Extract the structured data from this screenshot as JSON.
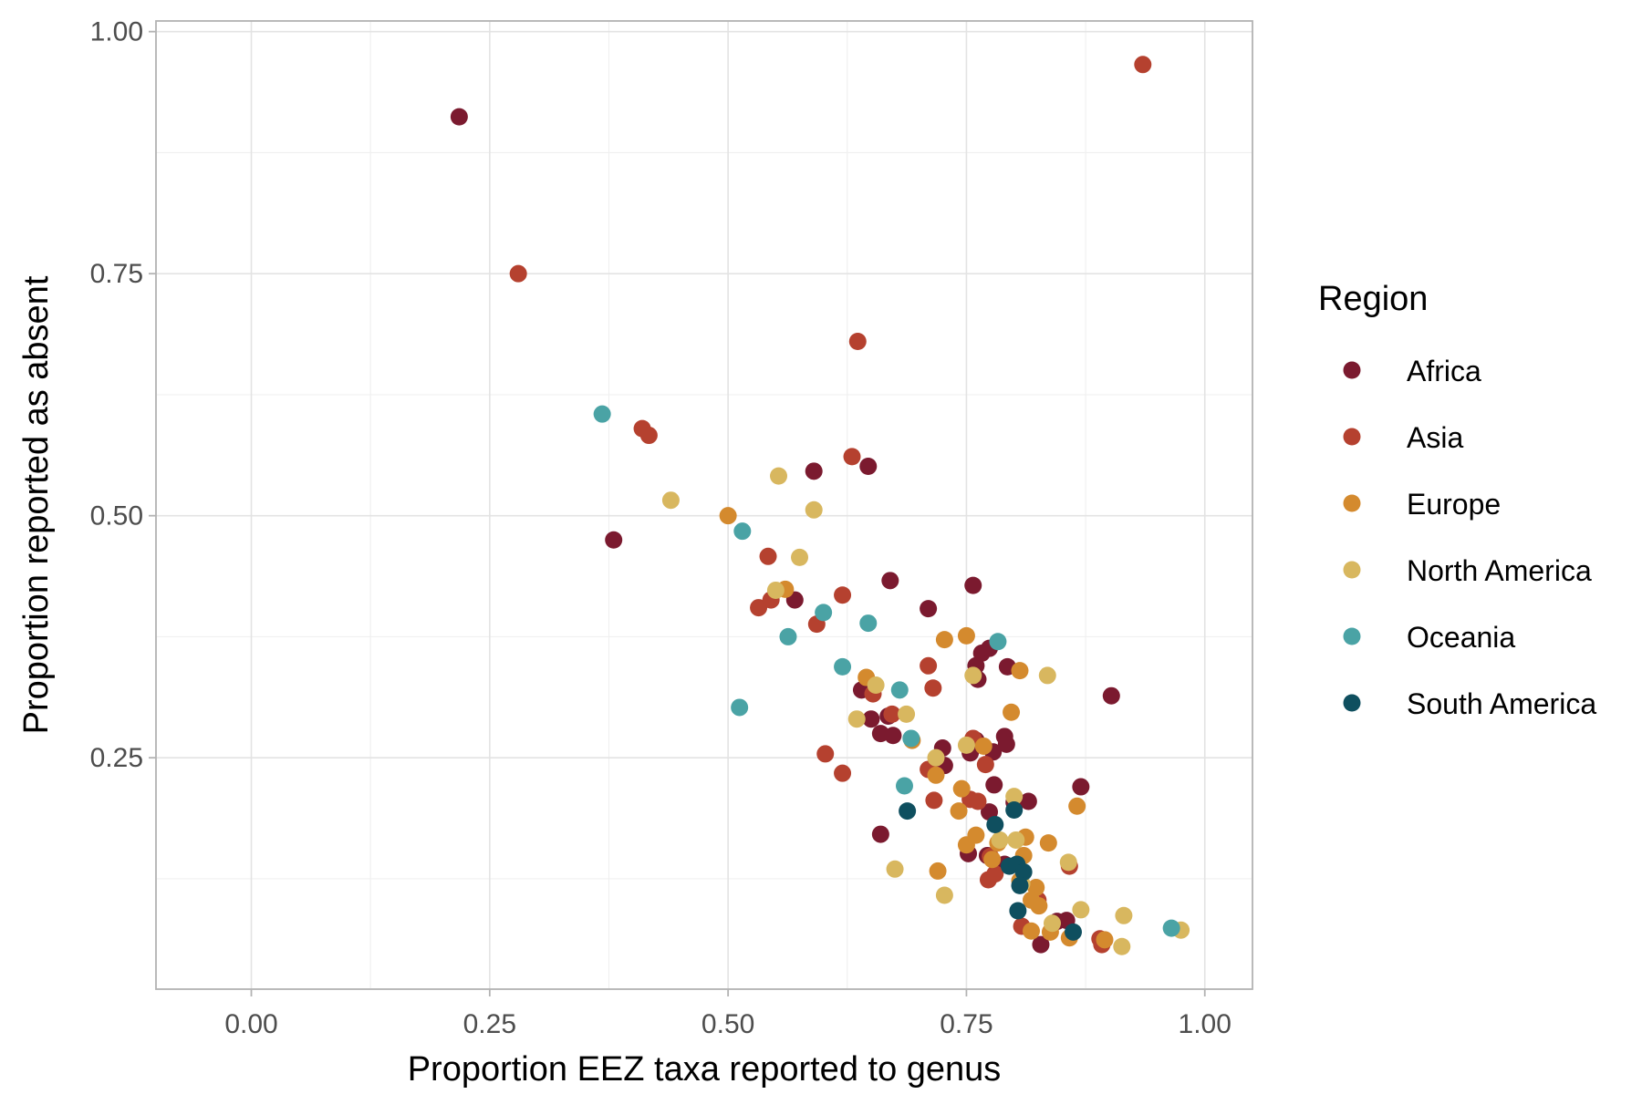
{
  "chart_data": {
    "type": "scatter",
    "title": "",
    "xlabel": "Proportion EEZ taxa reported to genus",
    "ylabel": "Proportion reported as absent",
    "xlim": [
      -0.1,
      1.05
    ],
    "ylim": [
      0.011,
      1.011
    ],
    "x_ticks": [
      0,
      0.25,
      0.5,
      0.75,
      1.0
    ],
    "x_tick_labels": [
      "0.00",
      "0.25",
      "0.50",
      "0.75",
      "1.00"
    ],
    "y_ticks": [
      0.25,
      0.5,
      0.75,
      1.0
    ],
    "y_tick_labels": [
      "0.25",
      "0.50",
      "0.75",
      "1.00"
    ],
    "grid": true,
    "legend": {
      "title": "Region",
      "position": "right"
    },
    "series": [
      {
        "name": "Africa",
        "color": "#7b1a2f",
        "points": [
          [
            0.218,
            0.912
          ],
          [
            0.38,
            0.475
          ],
          [
            0.57,
            0.413
          ],
          [
            0.59,
            0.546
          ],
          [
            0.647,
            0.551
          ],
          [
            0.67,
            0.433
          ],
          [
            0.71,
            0.404
          ],
          [
            0.757,
            0.428
          ],
          [
            0.64,
            0.32
          ],
          [
            0.65,
            0.29
          ],
          [
            0.66,
            0.275
          ],
          [
            0.673,
            0.273
          ],
          [
            0.668,
            0.293
          ],
          [
            0.66,
            0.171
          ],
          [
            0.725,
            0.26
          ],
          [
            0.727,
            0.242
          ],
          [
            0.76,
            0.345
          ],
          [
            0.762,
            0.331
          ],
          [
            0.766,
            0.358
          ],
          [
            0.774,
            0.363
          ],
          [
            0.793,
            0.344
          ],
          [
            0.754,
            0.255
          ],
          [
            0.76,
            0.268
          ],
          [
            0.778,
            0.256
          ],
          [
            0.79,
            0.272
          ],
          [
            0.792,
            0.264
          ],
          [
            0.779,
            0.222
          ],
          [
            0.774,
            0.194
          ],
          [
            0.8,
            0.204
          ],
          [
            0.815,
            0.205
          ],
          [
            0.87,
            0.22
          ],
          [
            0.902,
            0.314
          ],
          [
            0.752,
            0.151
          ],
          [
            0.772,
            0.149
          ],
          [
            0.845,
            0.081
          ],
          [
            0.828,
            0.057
          ],
          [
            0.855,
            0.082
          ],
          [
            0.79,
            0.14
          ]
        ]
      },
      {
        "name": "Asia",
        "color": "#b5412f",
        "points": [
          [
            0.935,
            0.966
          ],
          [
            0.28,
            0.75
          ],
          [
            0.636,
            0.68
          ],
          [
            0.41,
            0.59
          ],
          [
            0.417,
            0.583
          ],
          [
            0.63,
            0.561
          ],
          [
            0.542,
            0.458
          ],
          [
            0.532,
            0.405
          ],
          [
            0.545,
            0.413
          ],
          [
            0.62,
            0.418
          ],
          [
            0.593,
            0.388
          ],
          [
            0.71,
            0.345
          ],
          [
            0.715,
            0.322
          ],
          [
            0.652,
            0.316
          ],
          [
            0.672,
            0.295
          ],
          [
            0.602,
            0.254
          ],
          [
            0.62,
            0.234
          ],
          [
            0.716,
            0.206
          ],
          [
            0.71,
            0.238
          ],
          [
            0.757,
            0.27
          ],
          [
            0.77,
            0.243
          ],
          [
            0.754,
            0.207
          ],
          [
            0.762,
            0.205
          ],
          [
            0.775,
            0.148
          ],
          [
            0.773,
            0.124
          ],
          [
            0.78,
            0.13
          ],
          [
            0.808,
            0.076
          ],
          [
            0.825,
            0.103
          ],
          [
            0.858,
            0.138
          ],
          [
            0.89,
            0.063
          ],
          [
            0.892,
            0.057
          ]
        ]
      },
      {
        "name": "Europe",
        "color": "#d48a2e",
        "points": [
          [
            0.5,
            0.5
          ],
          [
            0.56,
            0.424
          ],
          [
            0.645,
            0.333
          ],
          [
            0.727,
            0.372
          ],
          [
            0.75,
            0.376
          ],
          [
            0.806,
            0.34
          ],
          [
            0.797,
            0.297
          ],
          [
            0.693,
            0.268
          ],
          [
            0.718,
            0.232
          ],
          [
            0.768,
            0.262
          ],
          [
            0.745,
            0.218
          ],
          [
            0.742,
            0.195
          ],
          [
            0.75,
            0.16
          ],
          [
            0.76,
            0.17
          ],
          [
            0.72,
            0.133
          ],
          [
            0.777,
            0.145
          ],
          [
            0.783,
            0.162
          ],
          [
            0.812,
            0.168
          ],
          [
            0.81,
            0.149
          ],
          [
            0.836,
            0.162
          ],
          [
            0.866,
            0.2
          ],
          [
            0.806,
            0.123
          ],
          [
            0.823,
            0.116
          ],
          [
            0.818,
            0.103
          ],
          [
            0.826,
            0.097
          ],
          [
            0.838,
            0.07
          ],
          [
            0.858,
            0.064
          ],
          [
            0.895,
            0.062
          ],
          [
            0.818,
            0.071
          ]
        ]
      },
      {
        "name": "North America",
        "color": "#d8b75f",
        "points": [
          [
            0.44,
            0.516
          ],
          [
            0.553,
            0.541
          ],
          [
            0.59,
            0.506
          ],
          [
            0.575,
            0.457
          ],
          [
            0.55,
            0.423
          ],
          [
            0.635,
            0.29
          ],
          [
            0.655,
            0.325
          ],
          [
            0.687,
            0.295
          ],
          [
            0.757,
            0.335
          ],
          [
            0.835,
            0.335
          ],
          [
            0.718,
            0.25
          ],
          [
            0.75,
            0.263
          ],
          [
            0.8,
            0.21
          ],
          [
            0.802,
            0.165
          ],
          [
            0.675,
            0.135
          ],
          [
            0.727,
            0.108
          ],
          [
            0.808,
            0.12
          ],
          [
            0.857,
            0.142
          ],
          [
            0.87,
            0.093
          ],
          [
            0.915,
            0.087
          ],
          [
            0.913,
            0.055
          ],
          [
            0.975,
            0.072
          ],
          [
            0.84,
            0.079
          ],
          [
            0.785,
            0.165
          ]
        ]
      },
      {
        "name": "Oceania",
        "color": "#4aa3a5",
        "points": [
          [
            0.368,
            0.605
          ],
          [
            0.515,
            0.484
          ],
          [
            0.6,
            0.4
          ],
          [
            0.563,
            0.375
          ],
          [
            0.647,
            0.389
          ],
          [
            0.62,
            0.344
          ],
          [
            0.68,
            0.32
          ],
          [
            0.512,
            0.302
          ],
          [
            0.692,
            0.27
          ],
          [
            0.685,
            0.221
          ],
          [
            0.783,
            0.37
          ],
          [
            0.965,
            0.074
          ]
        ]
      },
      {
        "name": "South America",
        "color": "#0f4f5f",
        "points": [
          [
            0.688,
            0.195
          ],
          [
            0.78,
            0.181
          ],
          [
            0.8,
            0.196
          ],
          [
            0.795,
            0.138
          ],
          [
            0.803,
            0.14
          ],
          [
            0.81,
            0.132
          ],
          [
            0.806,
            0.118
          ],
          [
            0.804,
            0.092
          ],
          [
            0.862,
            0.07
          ]
        ]
      }
    ]
  }
}
